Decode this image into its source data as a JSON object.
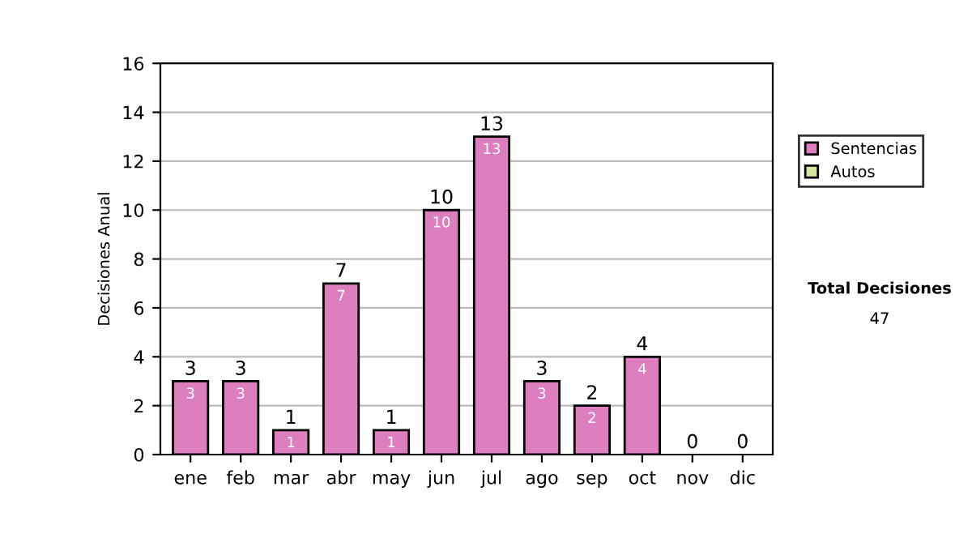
{
  "chart_data": {
    "type": "bar",
    "stacked": true,
    "ylabel": "Decisiones Anual",
    "categories": [
      "ene",
      "feb",
      "mar",
      "abr",
      "may",
      "jun",
      "jul",
      "ago",
      "sep",
      "oct",
      "nov",
      "dic"
    ],
    "series": [
      {
        "name": "Sentencias",
        "color": "#dd7fbf",
        "values": [
          3,
          3,
          1,
          7,
          1,
          10,
          13,
          3,
          2,
          4,
          0,
          0
        ],
        "value_labels": [
          "3",
          "3",
          "1",
          "7",
          "1",
          "10",
          "13",
          "3",
          "2",
          "4",
          null,
          null
        ]
      },
      {
        "name": "Autos",
        "color": "#d6e8a0",
        "values": [
          0,
          0,
          0,
          0,
          0,
          0,
          0,
          0,
          0,
          0,
          0,
          0
        ]
      }
    ],
    "totals": [
      "3",
      "3",
      "1",
      "7",
      "1",
      "10",
      "13",
      "3",
      "2",
      "4",
      "0",
      "0"
    ],
    "ylim": [
      0,
      16
    ],
    "yticks": [
      0,
      2,
      4,
      6,
      8,
      10,
      12,
      14,
      16
    ],
    "grid": "y",
    "legend": "right",
    "annotations": [
      "Total Decisiones",
      "47"
    ]
  }
}
